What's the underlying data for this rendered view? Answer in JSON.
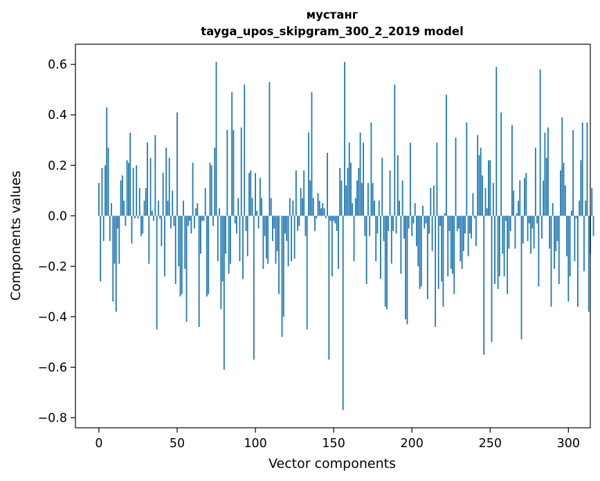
{
  "chart_data": {
    "type": "bar",
    "title": "мустанг",
    "subtitle": "tayga_upos_skipgram_300_2_2019 model",
    "xlabel": "Vector components",
    "ylabel": "Components values",
    "xlim": [
      -15,
      314
    ],
    "ylim": [
      -0.84,
      0.68
    ],
    "xticks": [
      0,
      50,
      100,
      150,
      200,
      250,
      300
    ],
    "xtick_labels": [
      "0",
      "50",
      "100",
      "150",
      "200",
      "250",
      "300"
    ],
    "yticks": [
      -0.8,
      -0.6,
      -0.4,
      -0.2,
      0.0,
      0.2,
      0.4,
      0.6
    ],
    "ytick_labels": [
      "−0.8",
      "−0.6",
      "−0.4",
      "−0.2",
      "0.0",
      "0.2",
      "0.4",
      "0.6"
    ],
    "bar_color": "#1f77b4",
    "bar_width": 0.8,
    "grid": false,
    "values": [
      0.13,
      -0.26,
      0.19,
      -0.1,
      0.2,
      0.43,
      0.27,
      -0.1,
      0.05,
      -0.34,
      -0.19,
      -0.38,
      -0.05,
      -0.19,
      0.14,
      0.16,
      0.06,
      -0.04,
      0.22,
      0.21,
      0.33,
      -0.11,
      0.19,
      -0.01,
      0.2,
      -0.01,
      0.11,
      -0.08,
      -0.07,
      0.06,
      0.11,
      0.29,
      -0.19,
      0.23,
      0.02,
      -0.02,
      0.32,
      -0.45,
      0.06,
      -0.01,
      -0.12,
      0.17,
      -0.24,
      0.27,
      0.06,
      0.23,
      -0.05,
      0.1,
      -0.04,
      -0.27,
      0.41,
      -0.2,
      -0.32,
      -0.31,
      0.06,
      -0.21,
      -0.42,
      -0.04,
      -0.02,
      -0.07,
      0.21,
      -0.05,
      0.03,
      0.05,
      -0.44,
      -0.15,
      -0.02,
      -0.02,
      0.11,
      -0.32,
      -0.31,
      0.21,
      0.2,
      -0.04,
      0.27,
      0.61,
      -0.18,
      0.03,
      -0.37,
      -0.26,
      -0.61,
      -0.15,
      0.34,
      -0.23,
      -0.19,
      0.49,
      0.34,
      -0.03,
      -0.07,
      0.07,
      -0.18,
      0.35,
      -0.25,
      0.52,
      -0.06,
      -0.16,
      0.17,
      0.18,
      0.07,
      -0.57,
      0.17,
      0.02,
      -0.05,
      0.15,
      0.07,
      -0.21,
      -0.08,
      -0.17,
      -0.19,
      0.53,
      0.07,
      -0.1,
      -0.05,
      -0.19,
      -0.14,
      -0.31,
      0.0,
      -0.48,
      -0.4,
      -0.07,
      -0.1,
      -0.2,
      0.07,
      -0.18,
      0.06,
      -0.17,
      0.18,
      -0.06,
      -0.04,
      0.11,
      0.07,
      0.18,
      -0.08,
      -0.45,
      0.33,
      0.14,
      0.49,
      0.07,
      -0.06,
      -0.01,
      0.09,
      0.06,
      0.03,
      0.05,
      0.03,
      -0.01,
      0.25,
      -0.57,
      -0.02,
      -0.24,
      -0.02,
      -0.03,
      -0.06,
      -0.21,
      0.19,
      0.14,
      -0.77,
      0.61,
      0.12,
      0.19,
      0.29,
      0.21,
      0.05,
      -0.18,
      0.07,
      0.14,
      0.19,
      0.33,
      0.13,
      0.29,
      -0.08,
      -0.27,
      0.13,
      -0.08,
      0.37,
      0.13,
      0.06,
      -0.18,
      -0.07,
      0.06,
      -0.25,
      0.23,
      -0.1,
      -0.36,
      -0.37,
      -0.06,
      0.18,
      -0.19,
      -0.06,
      0.52,
      -0.07,
      0.24,
      0.06,
      -0.23,
      0.14,
      -0.09,
      -0.41,
      -0.43,
      -0.05,
      0.29,
      -0.08,
      -0.03,
      0.05,
      -0.12,
      -0.2,
      -0.29,
      -0.28,
      0.04,
      -0.05,
      -0.03,
      -0.33,
      -0.07,
      0.11,
      -0.14,
      0.12,
      -0.44,
      0.29,
      -0.29,
      -0.04,
      -0.26,
      -0.36,
      0.01,
      0.48,
      -0.24,
      -0.06,
      -0.21,
      -0.23,
      -0.31,
      0.31,
      -0.06,
      -0.05,
      -0.18,
      -0.21,
      -0.14,
      -0.07,
      0.37,
      -0.16,
      -0.07,
      -0.09,
      0.09,
      -0.01,
      -0.12,
      0.32,
      0.24,
      0.27,
      0.16,
      -0.55,
      0.11,
      0.03,
      0.22,
      0.22,
      -0.5,
      0.13,
      -0.27,
      0.59,
      -0.29,
      -0.24,
      0.41,
      -0.15,
      -0.24,
      -0.02,
      -0.31,
      -0.13,
      -0.06,
      0.36,
      0.1,
      -0.13,
      0.01,
      0.06,
      0.14,
      -0.49,
      -0.11,
      0.15,
      0.17,
      -0.1,
      -0.03,
      -0.15,
      -0.05,
      -0.13,
      0.27,
      -0.03,
      -0.28,
      0.58,
      -0.09,
      0.14,
      0.33,
      0.23,
      0.35,
      -0.13,
      -0.36,
      0.05,
      -0.21,
      -0.14,
      -0.1,
      -0.27,
      0.18,
      0.39,
      0.21,
      0.12,
      -0.16,
      -0.34,
      -0.24,
      0.02,
      0.34,
      -0.18,
      -0.01,
      -0.36,
      0.06,
      0.22,
      0.37,
      -0.22,
      0.06,
      0.37,
      -0.38,
      -0.15,
      0.11,
      -0.08
    ]
  }
}
